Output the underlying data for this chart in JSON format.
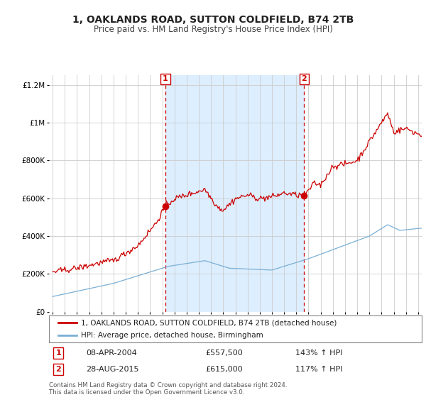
{
  "title": "1, OAKLANDS ROAD, SUTTON COLDFIELD, B74 2TB",
  "subtitle": "Price paid vs. HM Land Registry's House Price Index (HPI)",
  "legend_line1": "1, OAKLANDS ROAD, SUTTON COLDFIELD, B74 2TB (detached house)",
  "legend_line2": "HPI: Average price, detached house, Birmingham",
  "sale1_label": "1",
  "sale1_date": "08-APR-2004",
  "sale1_price": "£557,500",
  "sale1_hpi": "143% ↑ HPI",
  "sale2_label": "2",
  "sale2_date": "28-AUG-2015",
  "sale2_price": "£615,000",
  "sale2_hpi": "117% ↑ HPI",
  "footer": "Contains HM Land Registry data © Crown copyright and database right 2024.\nThis data is licensed under the Open Government Licence v3.0.",
  "red_color": "#cc0000",
  "blue_color": "#7aafd4",
  "shade_color": "#ddeeff",
  "bg_plot": "#ffffff",
  "ylim": [
    0,
    1250000
  ],
  "yticks": [
    0,
    200000,
    400000,
    600000,
    800000,
    1000000,
    1200000
  ],
  "sale1_year": 2004.25,
  "sale1_value": 557500,
  "sale2_year": 2015.65,
  "sale2_value": 615000,
  "xstart": 1995,
  "xend": 2025
}
